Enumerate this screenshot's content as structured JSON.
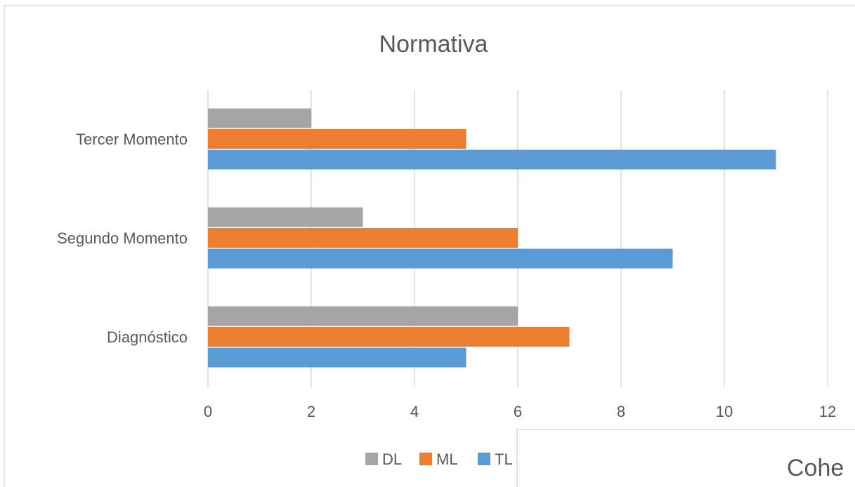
{
  "chart_data": {
    "type": "bar",
    "orientation": "horizontal",
    "title": "Normativa",
    "categories": [
      "Diagnóstico",
      "Segundo Momento",
      "Tercer Momento"
    ],
    "series": [
      {
        "name": "DL",
        "color": "#a5a5a5",
        "values": [
          6,
          3,
          2
        ]
      },
      {
        "name": "ML",
        "color": "#ed7d31",
        "values": [
          7,
          6,
          5
        ]
      },
      {
        "name": "TL",
        "color": "#5b9bd5",
        "values": [
          5,
          9,
          11
        ]
      }
    ],
    "xlim": [
      0,
      12
    ],
    "xticks": [
      0,
      2,
      4,
      6,
      8,
      10,
      12
    ],
    "grid": true,
    "legend_position": "bottom"
  },
  "overlay_chart": {
    "title_fragment": "Cohe"
  }
}
